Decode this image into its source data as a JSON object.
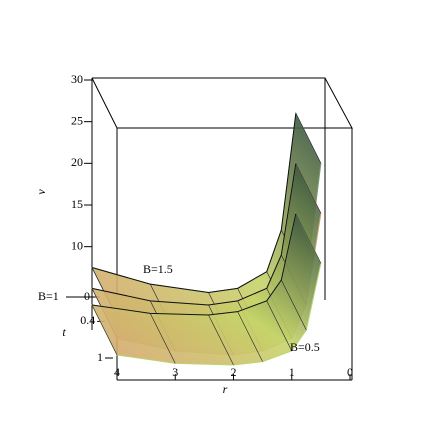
{
  "chart_data": {
    "type": "surface3d",
    "xlabel": "r",
    "ylabel": "t",
    "zlabel": "v",
    "x": [
      4,
      3,
      2,
      1.5,
      1,
      0.75,
      0.5
    ],
    "xlim": [
      4,
      0
    ],
    "xticks": [
      4,
      3,
      2,
      1,
      0
    ],
    "ylim": [
      0,
      1
    ],
    "yticks": [
      0,
      0.4,
      1
    ],
    "zlim": [
      0,
      30
    ],
    "zticks": [
      10,
      15,
      20,
      25,
      30
    ],
    "series": [
      {
        "name": "B=0.5",
        "color": "#b8d86a",
        "values": [
          3,
          2,
          1.8,
          2.2,
          3.5,
          6,
          14
        ]
      },
      {
        "name": "B=1",
        "color": "#c9a070",
        "values": [
          5,
          3.5,
          3,
          3.5,
          5,
          9,
          20
        ]
      },
      {
        "name": "B=1.5",
        "color": "#7a9a78",
        "values": [
          7.5,
          5.5,
          4.5,
          5,
          7,
          12,
          26
        ]
      }
    ]
  }
}
